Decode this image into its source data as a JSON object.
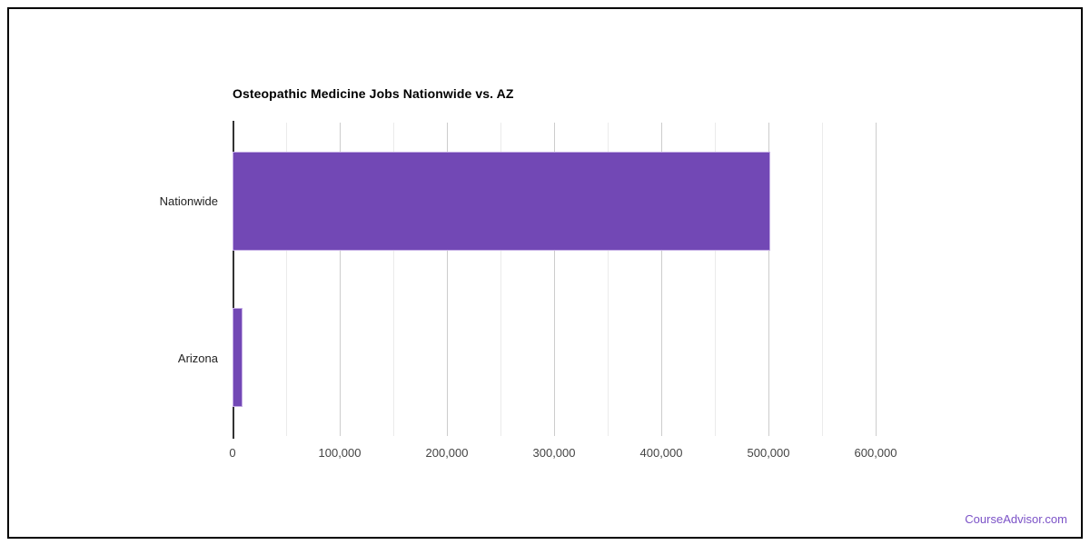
{
  "page": {
    "background_color": "#ffffff",
    "frame_border_color": "#000000"
  },
  "chart_data": {
    "type": "bar",
    "orientation": "horizontal",
    "title": "Osteopathic Medicine Jobs Nationwide vs. AZ",
    "categories": [
      "Nationwide",
      "Arizona"
    ],
    "values": [
      502000,
      9300
    ],
    "value_label": "Jobs",
    "bar_color": "#7248b5",
    "bar_border_color": "#c3abe4",
    "legend": "none",
    "grid": true,
    "x_axis": {
      "min": 0,
      "max": 650000,
      "minor_gridline_step": 50000,
      "major_gridline_step": 100000,
      "minor_gridline_color": "#ebebeb",
      "major_gridline_color": "#cccccc",
      "axis_line_color": "#333333",
      "ticks": [
        {
          "value": 0,
          "label": "0"
        },
        {
          "value": 100000,
          "label": "100,000"
        },
        {
          "value": 200000,
          "label": "200,000"
        },
        {
          "value": 300000,
          "label": "300,000"
        },
        {
          "value": 400000,
          "label": "400,000"
        },
        {
          "value": 500000,
          "label": "500,000"
        },
        {
          "value": 600000,
          "label": "600,000"
        }
      ]
    }
  },
  "footer": {
    "link_text": "CourseAdvisor.com",
    "link_color": "#7b52c7"
  }
}
